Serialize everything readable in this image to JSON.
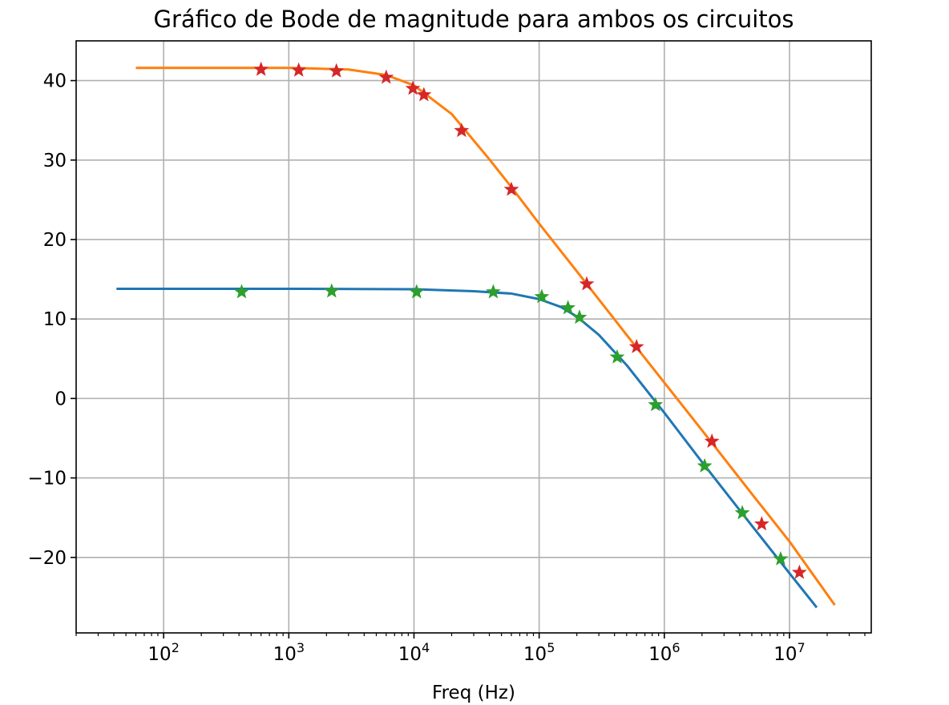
{
  "chart_data": {
    "type": "line",
    "title": "Gráfico de Bode de magnitude para ambos os circuitos",
    "xlabel": "Freq (Hz)",
    "ylabel": "",
    "xscale": "log",
    "xlim": [
      20,
      45000000
    ],
    "ylim": [
      -29.5,
      45
    ],
    "grid": true,
    "x_ticks": [
      {
        "value": 100,
        "base": "10",
        "exp": "2"
      },
      {
        "value": 1000,
        "base": "10",
        "exp": "3"
      },
      {
        "value": 10000,
        "base": "10",
        "exp": "4"
      },
      {
        "value": 100000,
        "base": "10",
        "exp": "5"
      },
      {
        "value": 1000000,
        "base": "10",
        "exp": "6"
      },
      {
        "value": 10000000,
        "base": "10",
        "exp": "7"
      }
    ],
    "y_ticks": [
      {
        "value": 40,
        "label": "40"
      },
      {
        "value": 30,
        "label": "30"
      },
      {
        "value": 20,
        "label": "20"
      },
      {
        "value": 10,
        "label": "10"
      },
      {
        "value": 0,
        "label": "0"
      },
      {
        "value": -10,
        "label": "−10"
      },
      {
        "value": -20,
        "label": "−20"
      }
    ],
    "series": [
      {
        "style": "line",
        "color": "#1f77b4",
        "x": [
          42,
          100,
          1000,
          10000,
          30000,
          60000,
          100000,
          150000,
          200000,
          300000,
          500000,
          1000000,
          2000000,
          5000000,
          10000000,
          16500000
        ],
        "y": [
          13.8,
          13.8,
          13.8,
          13.75,
          13.5,
          13.2,
          12.5,
          11.5,
          10.3,
          8.0,
          4.2,
          -1.8,
          -8.0,
          -16.0,
          -22.0,
          -26.3
        ]
      },
      {
        "style": "line",
        "color": "#ff7f0e",
        "x": [
          60,
          100,
          1000,
          3000,
          6000,
          10000,
          20000,
          40000,
          60000,
          100000,
          200000,
          500000,
          1000000,
          2000000,
          5000000,
          10000000,
          23000000
        ],
        "y": [
          41.6,
          41.6,
          41.6,
          41.4,
          40.7,
          39.4,
          35.8,
          30.1,
          26.6,
          22.0,
          16.0,
          8.0,
          2.0,
          -4.0,
          -12.0,
          -18.0,
          -26.0
        ]
      },
      {
        "style": "star",
        "color": "#2ca02c",
        "x": [
          420,
          2200,
          10500,
          43000,
          105000,
          170000,
          210000,
          420000,
          850000,
          2100000,
          4200000,
          8500000
        ],
        "y": [
          13.4,
          13.5,
          13.4,
          13.4,
          12.8,
          11.4,
          10.2,
          5.2,
          -0.8,
          -8.5,
          -14.4,
          -20.2
        ]
      },
      {
        "style": "star",
        "color": "#d62728",
        "x": [
          600,
          1200,
          2400,
          6000,
          9800,
          12000,
          24000,
          60000,
          240000,
          600000,
          2400000,
          6000000,
          12000000
        ],
        "y": [
          41.4,
          41.3,
          41.2,
          40.4,
          39.0,
          38.2,
          33.7,
          26.3,
          14.4,
          6.5,
          -5.4,
          -15.8,
          -21.9
        ]
      }
    ]
  }
}
